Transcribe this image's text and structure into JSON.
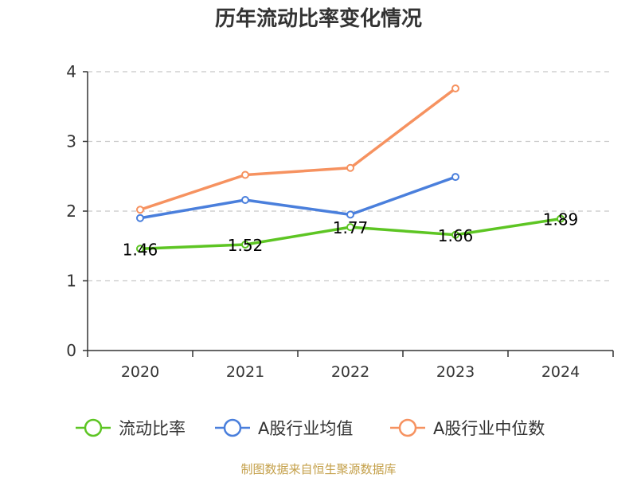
{
  "chart_data": {
    "type": "line",
    "title": "历年流动比率变化情况",
    "categories": [
      "2020",
      "2021",
      "2022",
      "2023",
      "2024"
    ],
    "ylim": [
      0,
      4
    ],
    "yticks": [
      "0",
      "1",
      "2",
      "3",
      "4"
    ],
    "grid": true,
    "legend_placement": "bottom",
    "series": [
      {
        "name": "流动比率",
        "color": "#5dc523",
        "values": [
          1.46,
          1.52,
          1.77,
          1.66,
          1.89
        ],
        "labels": [
          "1.46",
          "1.52",
          "1.77",
          "1.66",
          "1.89"
        ]
      },
      {
        "name": "A股行业均值",
        "color": "#4a7fdc",
        "values": [
          1.9,
          2.16,
          1.95,
          2.49,
          null
        ]
      },
      {
        "name": "A股行业中位数",
        "color": "#f69260",
        "values": [
          2.02,
          2.52,
          2.62,
          3.76,
          null
        ]
      }
    ]
  },
  "source_text": "制图数据来自恒生聚源数据库"
}
